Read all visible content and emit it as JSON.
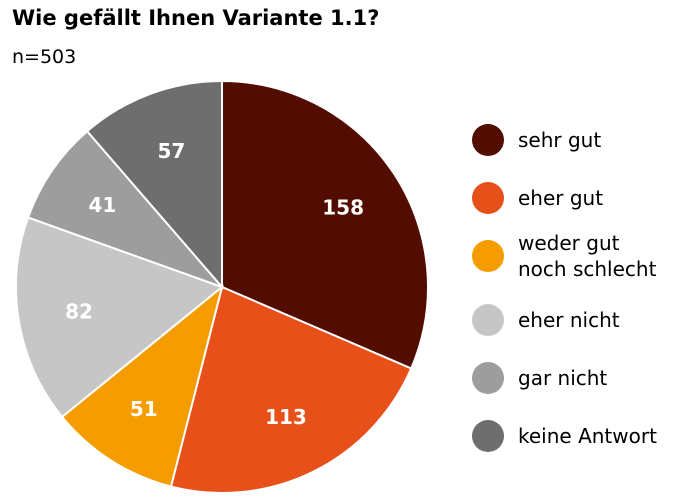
{
  "chart_data": {
    "type": "pie",
    "title": "Wie gefällt Ihnen Variante 1.1?",
    "subtitle": "n=503",
    "categories": [
      "sehr gut",
      "eher gut",
      "weder gut noch schlecht",
      "eher nicht",
      "gar nicht",
      "keine Antwort"
    ],
    "values": [
      158,
      113,
      51,
      82,
      41,
      57
    ],
    "colors": [
      "#520c00",
      "#e8501a",
      "#f59c00",
      "#c6c6c6",
      "#9d9d9d",
      "#6e6e6e"
    ],
    "label_colors": [
      "#ffffff",
      "#ffffff",
      "#ffffff",
      "#ffffff",
      "#ffffff",
      "#ffffff"
    ],
    "legend_placement": "right",
    "start": "top, clockwise"
  }
}
